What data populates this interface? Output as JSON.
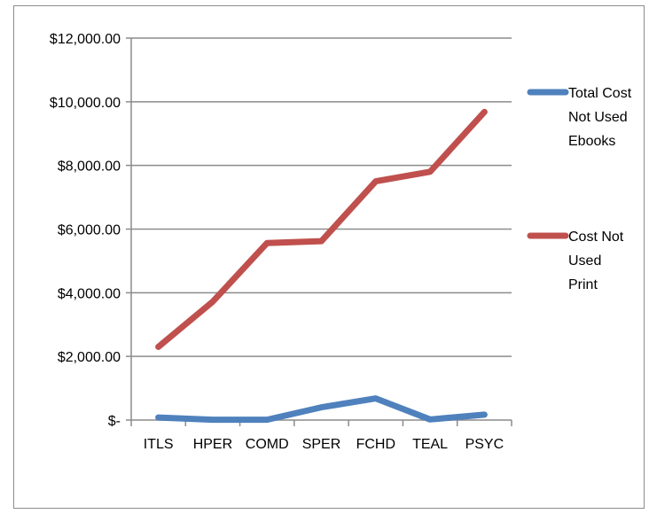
{
  "chart_data": {
    "type": "line",
    "categories": [
      "ITLS",
      "HPER",
      "COMD",
      "SPER",
      "FCHD",
      "TEAL",
      "PSYC"
    ],
    "y_tick_labels": [
      "$-",
      "$2,000.00",
      "$4,000.00",
      "$6,000.00",
      "$8,000.00",
      "$10,000.00",
      "$12,000.00"
    ],
    "y_ticks": [
      0,
      2000,
      4000,
      6000,
      8000,
      10000,
      12000
    ],
    "ylim": [
      0,
      12000
    ],
    "grid": true,
    "legend_position": "right",
    "series": [
      {
        "name": "Total Cost Not Used Ebooks",
        "legend_lines": [
          "Total Cost",
          "Not Used",
          "Ebooks"
        ],
        "color": "#4f81bd",
        "values": [
          80,
          10,
          10,
          400,
          680,
          20,
          170
        ]
      },
      {
        "name": "Cost Not Used Print",
        "legend_lines": [
          "Cost Not",
          "Used",
          "Print"
        ],
        "color": "#c0504d",
        "values": [
          2300,
          3720,
          5560,
          5620,
          7500,
          7800,
          9680
        ]
      }
    ]
  }
}
